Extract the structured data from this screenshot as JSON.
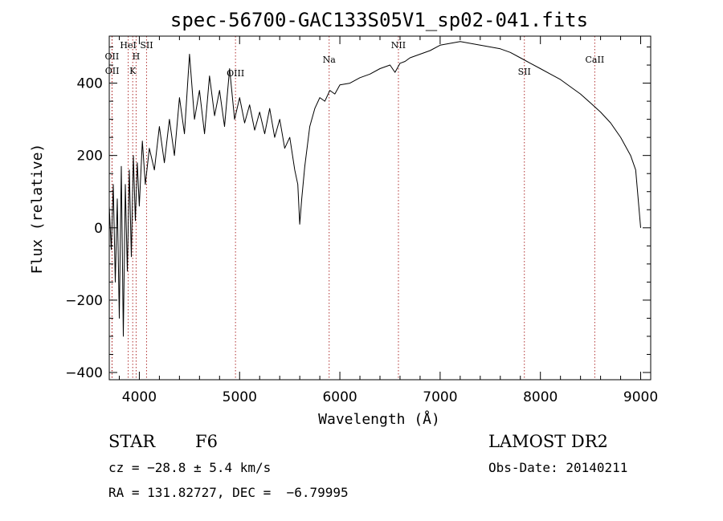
{
  "chart_data": {
    "type": "line",
    "title": "spec-56700-GAC133S05V1_sp02-041.fits",
    "xlabel": "Wavelength (Å)",
    "ylabel": "Flux (relative)",
    "xlim": [
      3700,
      9100
    ],
    "ylim": [
      -420,
      530
    ],
    "xticks": [
      4000,
      5000,
      6000,
      7000,
      8000,
      9000
    ],
    "xtick_labels": [
      "4000",
      "5000",
      "6000",
      "7000",
      "8000",
      "9000"
    ],
    "yticks": [
      -400,
      -200,
      0,
      200,
      400
    ],
    "ytick_labels": [
      "−400",
      "−200",
      "0",
      "200",
      "400"
    ],
    "series": [
      {
        "color": "#000000",
        "points": [
          [
            3700,
            60
          ],
          [
            3720,
            -60
          ],
          [
            3740,
            120
          ],
          [
            3760,
            -150
          ],
          [
            3780,
            80
          ],
          [
            3800,
            -250
          ],
          [
            3820,
            170
          ],
          [
            3840,
            -300
          ],
          [
            3860,
            120
          ],
          [
            3880,
            -120
          ],
          [
            3900,
            160
          ],
          [
            3920,
            -80
          ],
          [
            3940,
            200
          ],
          [
            3960,
            20
          ],
          [
            3980,
            180
          ],
          [
            4000,
            60
          ],
          [
            4030,
            240
          ],
          [
            4060,
            120
          ],
          [
            4100,
            220
          ],
          [
            4150,
            160
          ],
          [
            4200,
            280
          ],
          [
            4250,
            180
          ],
          [
            4300,
            300
          ],
          [
            4350,
            200
          ],
          [
            4400,
            360
          ],
          [
            4450,
            260
          ],
          [
            4500,
            480
          ],
          [
            4550,
            300
          ],
          [
            4600,
            380
          ],
          [
            4650,
            260
          ],
          [
            4700,
            420
          ],
          [
            4750,
            310
          ],
          [
            4800,
            380
          ],
          [
            4850,
            280
          ],
          [
            4900,
            440
          ],
          [
            4950,
            300
          ],
          [
            5000,
            360
          ],
          [
            5050,
            290
          ],
          [
            5100,
            340
          ],
          [
            5150,
            270
          ],
          [
            5200,
            320
          ],
          [
            5250,
            260
          ],
          [
            5300,
            330
          ],
          [
            5350,
            250
          ],
          [
            5400,
            300
          ],
          [
            5450,
            220
          ],
          [
            5500,
            250
          ],
          [
            5550,
            160
          ],
          [
            5580,
            120
          ],
          [
            5600,
            10
          ],
          [
            5620,
            80
          ],
          [
            5650,
            170
          ],
          [
            5700,
            280
          ],
          [
            5750,
            330
          ],
          [
            5800,
            360
          ],
          [
            5850,
            350
          ],
          [
            5900,
            380
          ],
          [
            5950,
            370
          ],
          [
            6000,
            395
          ],
          [
            6100,
            400
          ],
          [
            6200,
            415
          ],
          [
            6300,
            425
          ],
          [
            6400,
            440
          ],
          [
            6500,
            450
          ],
          [
            6550,
            430
          ],
          [
            6600,
            455
          ],
          [
            6650,
            460
          ],
          [
            6700,
            470
          ],
          [
            6800,
            480
          ],
          [
            6900,
            490
          ],
          [
            7000,
            505
          ],
          [
            7100,
            510
          ],
          [
            7200,
            515
          ],
          [
            7300,
            510
          ],
          [
            7400,
            505
          ],
          [
            7500,
            500
          ],
          [
            7600,
            495
          ],
          [
            7700,
            485
          ],
          [
            7800,
            470
          ],
          [
            7900,
            455
          ],
          [
            8000,
            440
          ],
          [
            8100,
            425
          ],
          [
            8200,
            410
          ],
          [
            8300,
            390
          ],
          [
            8400,
            370
          ],
          [
            8500,
            345
          ],
          [
            8600,
            320
          ],
          [
            8700,
            290
          ],
          [
            8800,
            250
          ],
          [
            8900,
            200
          ],
          [
            8950,
            160
          ],
          [
            9000,
            0
          ]
        ]
      }
    ],
    "line_markers": [
      {
        "label": "OII",
        "x": 3727
      },
      {
        "label": "OII",
        "x": 3729
      },
      {
        "label": "HeI",
        "x": 3889
      },
      {
        "label": "H",
        "x": 3968
      },
      {
        "label": "K",
        "x": 3934
      },
      {
        "label": "SII",
        "x": 4072
      },
      {
        "label": "OIII",
        "x": 4959
      },
      {
        "label": "Na",
        "x": 5893
      },
      {
        "label": "NII",
        "x": 6584
      },
      {
        "label": "SII",
        "x": 7840
      },
      {
        "label": "CaII",
        "x": 8542
      }
    ],
    "grid": false,
    "legend": "none"
  },
  "info": {
    "class": "STAR",
    "subclass": "F6",
    "survey": "LAMOST DR2",
    "cz": "cz = −28.8 ± 5.4 km/s",
    "obs_date": "Obs-Date: 20140211",
    "radec": "RA = 131.82727, DEC =  −6.79995"
  }
}
